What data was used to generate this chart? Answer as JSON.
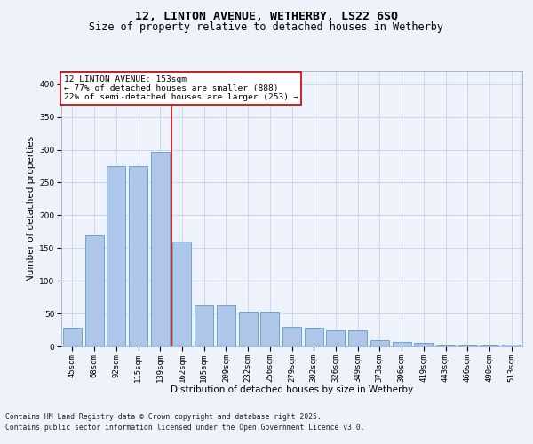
{
  "title_line1": "12, LINTON AVENUE, WETHERBY, LS22 6SQ",
  "title_line2": "Size of property relative to detached houses in Wetherby",
  "xlabel": "Distribution of detached houses by size in Wetherby",
  "ylabel": "Number of detached properties",
  "categories": [
    "45sqm",
    "68sqm",
    "92sqm",
    "115sqm",
    "139sqm",
    "162sqm",
    "185sqm",
    "209sqm",
    "232sqm",
    "256sqm",
    "279sqm",
    "302sqm",
    "326sqm",
    "349sqm",
    "373sqm",
    "396sqm",
    "419sqm",
    "443sqm",
    "466sqm",
    "490sqm",
    "513sqm"
  ],
  "bar_values": [
    28,
    170,
    275,
    275,
    297,
    160,
    62,
    62,
    53,
    53,
    30,
    28,
    25,
    25,
    9,
    7,
    5,
    1,
    1,
    2,
    3
  ],
  "bar_color": "#aec6e8",
  "bar_edge_color": "#5b9bd5",
  "vline_index": 4.5,
  "vline_color": "#c00000",
  "annotation_text": "12 LINTON AVENUE: 153sqm\n← 77% of detached houses are smaller (888)\n22% of semi-detached houses are larger (253) →",
  "annotation_box_color": "#ffffff",
  "annotation_box_edgecolor": "#c00000",
  "bg_color": "#eef2fb",
  "plot_bg_color": "#eef2fb",
  "ylim": [
    0,
    420
  ],
  "yticks": [
    0,
    50,
    100,
    150,
    200,
    250,
    300,
    350,
    400
  ],
  "footer_line1": "Contains HM Land Registry data © Crown copyright and database right 2025.",
  "footer_line2": "Contains public sector information licensed under the Open Government Licence v3.0.",
  "title_fontsize": 9.5,
  "subtitle_fontsize": 8.5,
  "axis_label_fontsize": 7.5,
  "tick_fontsize": 6.5,
  "annotation_fontsize": 6.8,
  "footer_fontsize": 5.8
}
